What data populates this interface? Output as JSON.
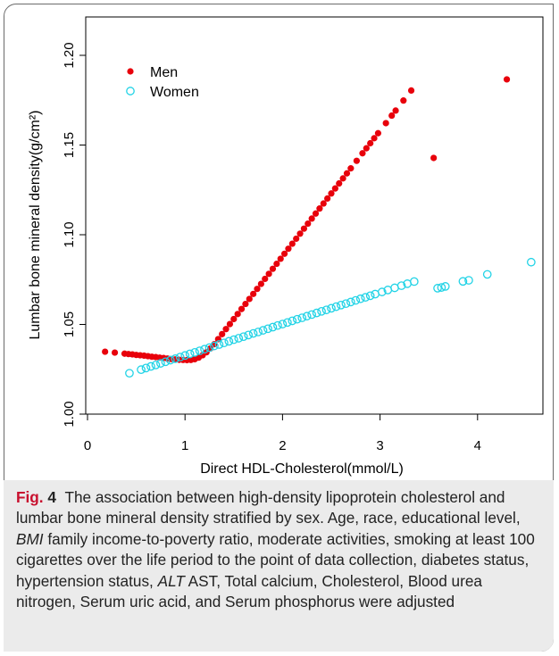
{
  "chart_data": {
    "type": "scatter",
    "xlabel": "Direct HDL-Cholesterol(mmol/L)",
    "ylabel": "Lumbar bone mineral density(g/cm²)",
    "xlim": [
      0,
      4.6
    ],
    "ylim": [
      1.0,
      1.2
    ],
    "xticks": [
      0,
      1,
      2,
      3,
      4
    ],
    "yticks": [
      1.0,
      1.05,
      1.1,
      1.15,
      1.2
    ],
    "ytick_labels": [
      "1.00",
      "1.05",
      "1.10",
      "1.15",
      "1.20"
    ],
    "legend_position": "top-left",
    "grid": false,
    "series": [
      {
        "name": "Men",
        "marker": "filled-circle",
        "color": "#e8000b",
        "x": [
          0.18,
          0.28,
          0.38,
          0.42,
          0.46,
          0.5,
          0.54,
          0.58,
          0.62,
          0.66,
          0.7,
          0.74,
          0.78,
          0.82,
          0.86,
          0.9,
          0.94,
          0.98,
          1.02,
          1.06,
          1.1,
          1.14,
          1.18,
          1.22,
          1.26,
          1.3,
          1.34,
          1.38,
          1.42,
          1.46,
          1.5,
          1.54,
          1.58,
          1.62,
          1.66,
          1.7,
          1.74,
          1.78,
          1.82,
          1.86,
          1.9,
          1.94,
          1.98,
          2.02,
          2.06,
          2.1,
          2.14,
          2.18,
          2.22,
          2.26,
          2.3,
          2.34,
          2.38,
          2.42,
          2.46,
          2.5,
          2.54,
          2.58,
          2.62,
          2.66,
          2.7,
          2.76,
          2.82,
          2.86,
          2.9,
          2.94,
          2.98,
          3.06,
          3.12,
          3.16,
          3.24,
          3.32,
          3.55,
          4.3
        ],
        "y": [
          1.0348,
          1.0343,
          1.0337,
          1.0335,
          1.0333,
          1.033,
          1.0328,
          1.0326,
          1.0323,
          1.032,
          1.0318,
          1.0315,
          1.0313,
          1.031,
          1.0307,
          1.0305,
          1.0303,
          1.0302,
          1.0301,
          1.0302,
          1.0306,
          1.0315,
          1.0328,
          1.0345,
          1.0366,
          1.039,
          1.0418,
          1.0446,
          1.0474,
          1.0502,
          1.053,
          1.0558,
          1.0586,
          1.0614,
          1.0642,
          1.067,
          1.0698,
          1.0726,
          1.0754,
          1.0782,
          1.081,
          1.0838,
          1.0866,
          1.0894,
          1.0922,
          1.095,
          1.0978,
          1.1006,
          1.1034,
          1.1062,
          1.109,
          1.1118,
          1.1146,
          1.1174,
          1.1202,
          1.123,
          1.1258,
          1.1286,
          1.1314,
          1.1342,
          1.137,
          1.1412,
          1.1454,
          1.1482,
          1.151,
          1.1538,
          1.1566,
          1.1622,
          1.1664,
          1.1692,
          1.1748,
          1.1804,
          1.1428,
          1.1866
        ]
      },
      {
        "name": "Women",
        "marker": "open-circle",
        "color": "#22d3e6",
        "x": [
          0.43,
          0.55,
          0.6,
          0.65,
          0.7,
          0.75,
          0.8,
          0.85,
          0.9,
          0.95,
          1.0,
          1.05,
          1.1,
          1.15,
          1.2,
          1.25,
          1.3,
          1.35,
          1.4,
          1.45,
          1.5,
          1.55,
          1.6,
          1.65,
          1.7,
          1.75,
          1.8,
          1.85,
          1.9,
          1.95,
          2.0,
          2.05,
          2.1,
          2.15,
          2.2,
          2.25,
          2.3,
          2.35,
          2.4,
          2.45,
          2.5,
          2.55,
          2.6,
          2.65,
          2.7,
          2.75,
          2.8,
          2.85,
          2.9,
          2.95,
          3.02,
          3.08,
          3.15,
          3.22,
          3.28,
          3.35,
          3.59,
          3.63,
          3.67,
          3.85,
          3.91,
          4.1,
          4.55
        ],
        "y": [
          1.0228,
          1.0248,
          1.0257,
          1.0266,
          1.0274,
          1.0283,
          1.0292,
          1.0301,
          1.0309,
          1.0318,
          1.0327,
          1.0336,
          1.0344,
          1.0353,
          1.0362,
          1.0371,
          1.038,
          1.0388,
          1.0397,
          1.0406,
          1.0415,
          1.0423,
          1.0432,
          1.0441,
          1.045,
          1.0458,
          1.0467,
          1.0476,
          1.0485,
          1.0494,
          1.0502,
          1.0511,
          1.052,
          1.0529,
          1.0537,
          1.0546,
          1.0555,
          1.0564,
          1.0573,
          1.0581,
          1.059,
          1.0599,
          1.0608,
          1.0616,
          1.0625,
          1.0634,
          1.0643,
          1.0651,
          1.066,
          1.0669,
          1.0681,
          1.0692,
          1.0704,
          1.0716,
          1.0727,
          1.0739,
          1.0702,
          1.0706,
          1.0712,
          1.074,
          1.0746,
          1.0779,
          1.0847
        ]
      }
    ]
  },
  "caption": {
    "label": "Fig.",
    "number": "4",
    "p1": "The association between high-density lipoprotein cholesterol and lumbar bone mineral density stratified by sex. Age, race, educational level, ",
    "bmi": "BMI",
    "p2": " family income-to-poverty ratio, moderate activities, smoking at least 100 cigarettes over the life period to the point of data collection, diabetes status, hypertension status, ",
    "alt": "ALT",
    "p3": " AST, Total calcium, Cholesterol, Blood urea nitrogen, Serum uric acid, and Serum phosphorus were adjusted"
  }
}
